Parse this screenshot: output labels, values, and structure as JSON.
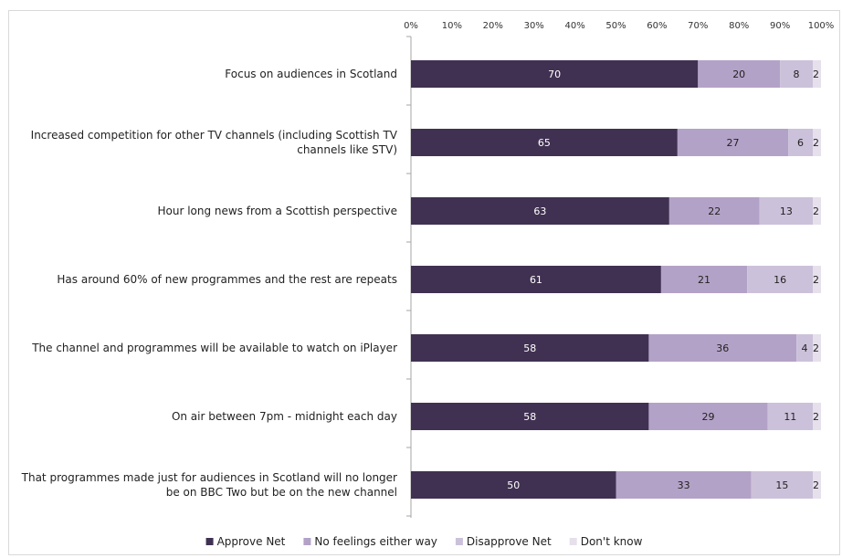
{
  "chart_data": {
    "type": "bar",
    "orientation": "horizontal",
    "stacked": true,
    "title": "",
    "xlabel": "",
    "ylabel": "",
    "xlim": [
      0,
      100
    ],
    "x_ticks": [
      "0%",
      "10%",
      "20%",
      "30%",
      "40%",
      "50%",
      "60%",
      "70%",
      "80%",
      "90%",
      "100%"
    ],
    "grid": false,
    "legend_position": "bottom",
    "categories": [
      [
        "Focus on audiences in Scotland"
      ],
      [
        "Increased competition for other TV channels (including Scottish TV",
        "channels like STV)"
      ],
      [
        "Hour long news from a Scottish perspective"
      ],
      [
        "Has around 60% of new programmes and the rest are repeats"
      ],
      [
        "The channel and programmes will be available to watch on iPlayer"
      ],
      [
        "On air between 7pm - midnight each day"
      ],
      [
        "That programmes made just for audiences in Scotland will no longer",
        "be on BBC Two but be on the new channel"
      ]
    ],
    "series": [
      {
        "name": "Approve Net",
        "color": "#403152",
        "values": [
          70,
          65,
          63,
          61,
          58,
          58,
          50
        ]
      },
      {
        "name": "No feelings either way",
        "color": "#b3a2c7",
        "values": [
          20,
          27,
          22,
          21,
          36,
          29,
          33
        ]
      },
      {
        "name": "Disapprove Net",
        "color": "#ccc1da",
        "values": [
          8,
          6,
          13,
          16,
          4,
          11,
          15
        ]
      },
      {
        "name": "Don't know",
        "color": "#e6e0ec",
        "values": [
          2,
          2,
          2,
          2,
          2,
          2,
          2
        ]
      }
    ]
  }
}
